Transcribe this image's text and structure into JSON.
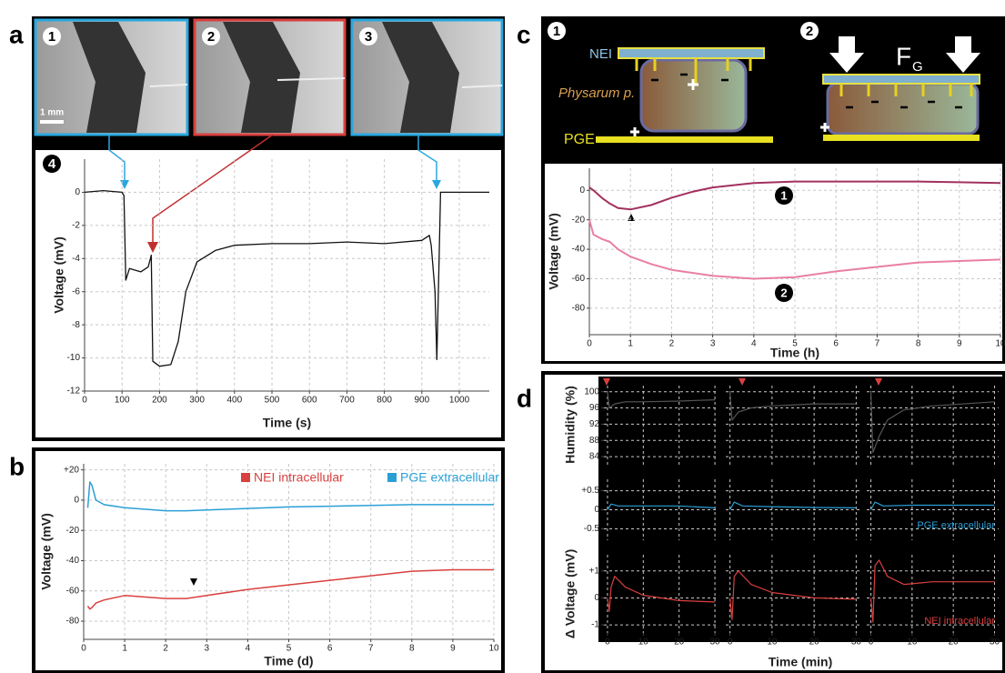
{
  "panel_labels": [
    "a",
    "b",
    "c",
    "d"
  ],
  "panel_a": {
    "images": [
      {
        "label": "1"
      },
      {
        "label": "2"
      },
      {
        "label": "3"
      }
    ],
    "scale_bar": "1 mm",
    "plot_label": "4"
  },
  "panel_c": {
    "diagram_1": "1",
    "diagram_2": "2",
    "nei": "NEI",
    "physarum": "Physarum p.",
    "pge": "PGE",
    "force": "F",
    "force_sub": "G"
  },
  "panel_d": {
    "xlabel": "Time (min)",
    "humidity_label": "Humidity (%)",
    "voltage_label": "Δ Voltage (mV)"
  },
  "chart_data": [
    {
      "type": "line",
      "xlabel": "Time (s)",
      "ylabel": "Voltage (mV)",
      "xlim": [
        0,
        1080
      ],
      "ylim": [
        -12,
        2
      ],
      "xticks": [
        0,
        100,
        200,
        300,
        400,
        500,
        600,
        700,
        800,
        900,
        1000
      ],
      "yticks": [
        0,
        -2,
        -4,
        -6,
        -8,
        -10,
        -12
      ],
      "grid": true,
      "x": [
        0,
        50,
        100,
        105,
        110,
        120,
        150,
        170,
        178,
        182,
        200,
        230,
        250,
        270,
        300,
        350,
        400,
        500,
        600,
        700,
        800,
        900,
        920,
        925,
        935,
        940,
        945,
        950,
        1000,
        1080
      ],
      "series": [
        {
          "color": "#111111",
          "values": [
            0,
            0.1,
            0,
            -0.2,
            -5.3,
            -4.6,
            -4.8,
            -4.5,
            -3.8,
            -10.2,
            -10.5,
            -10.4,
            -9,
            -6,
            -4.2,
            -3.5,
            -3.2,
            -3.1,
            -3.1,
            -3.0,
            -3.1,
            -2.9,
            -2.6,
            -3.2,
            -6,
            -10.1,
            -5,
            0,
            0,
            0
          ]
        }
      ]
    },
    {
      "type": "line",
      "xlabel": "Time (d)",
      "ylabel": "Voltage (mV)",
      "xlim": [
        0,
        10
      ],
      "ylim": [
        -92,
        24
      ],
      "xticks": [
        0,
        1,
        2,
        3,
        4,
        5,
        6,
        7,
        8,
        9,
        10
      ],
      "yticks": [
        {
          "value": 20,
          "label": "+20"
        },
        0,
        -20,
        -40,
        -60,
        -80
      ],
      "grid": true,
      "x": [
        0.1,
        0.15,
        0.2,
        0.3,
        0.5,
        1,
        2,
        2.5,
        3,
        4,
        5,
        6,
        7,
        8,
        9,
        10
      ],
      "series": [
        {
          "name": "NEI intracellular",
          "color": "#d9403f",
          "values": [
            -70,
            -72,
            -71,
            -68,
            -66,
            -63,
            -65,
            -65,
            -63,
            -59,
            -56,
            -53,
            -50,
            -47,
            -46,
            -46
          ]
        },
        {
          "name": "PGE extracellular",
          "color": "#2a9fd6",
          "values": [
            -5,
            12,
            10,
            0,
            -3,
            -5,
            -7,
            -7,
            -6.5,
            -5.5,
            -4.5,
            -4,
            -3.5,
            -3,
            -3,
            -3
          ]
        }
      ]
    },
    {
      "type": "line",
      "xlabel": "Time (h)",
      "ylabel": "Voltage (mV)",
      "xlim": [
        0,
        10
      ],
      "ylim": [
        -98,
        15
      ],
      "xticks": [
        0,
        1,
        2,
        3,
        4,
        5,
        6,
        7,
        8,
        9,
        10
      ],
      "yticks": [
        0,
        -20,
        -40,
        -60,
        -80
      ],
      "grid": true,
      "x": [
        0,
        0.1,
        0.3,
        0.5,
        0.7,
        1,
        1.5,
        2,
        2.5,
        3,
        4,
        5,
        6,
        7,
        8,
        9,
        10
      ],
      "series": [
        {
          "name": "1",
          "color": "#a3305f",
          "values": [
            2,
            0,
            -5,
            -9,
            -12,
            -13,
            -10,
            -5,
            -1,
            2,
            5,
            6,
            6,
            6,
            6,
            5.5,
            5
          ]
        },
        {
          "name": "2",
          "color": "#e97fa4",
          "values": [
            -20,
            -30,
            -33,
            -35,
            -40,
            -45,
            -50,
            -54,
            -56,
            -58,
            -60,
            -59,
            -55,
            -52,
            -49,
            -48,
            -47
          ]
        }
      ]
    },
    {
      "type": "line",
      "xlim": [
        -1,
        31
      ],
      "ylim": [
        82,
        101.5
      ],
      "xticks": [
        0,
        10,
        20,
        30
      ],
      "yticks": [
        100,
        96,
        92,
        88,
        84
      ],
      "grid": true,
      "x": [
        0,
        0.5,
        2,
        5,
        10,
        20,
        30
      ],
      "series": [
        {
          "color": "#555555",
          "values": [
            100,
            96,
            97,
            97.5,
            97.5,
            97.7,
            98
          ]
        }
      ]
    },
    {
      "type": "line",
      "xlim": [
        -1,
        31
      ],
      "ylim": [
        82,
        101.5
      ],
      "xticks": [
        0,
        10,
        20,
        30
      ],
      "yticks": [
        100,
        96,
        92,
        88,
        84
      ],
      "grid": true,
      "x": [
        0,
        0.5,
        2,
        5,
        10,
        20,
        30
      ],
      "series": [
        {
          "color": "#555555",
          "values": [
            100,
            93,
            95,
            96,
            96.5,
            97,
            97
          ]
        }
      ]
    },
    {
      "type": "line",
      "xlim": [
        -1,
        31
      ],
      "ylim": [
        82,
        101.5
      ],
      "xticks": [
        0,
        10,
        20,
        30
      ],
      "yticks": [
        100,
        96,
        92,
        88,
        84
      ],
      "grid": true,
      "x": [
        0,
        0.5,
        2,
        4,
        8,
        15,
        30
      ],
      "series": [
        {
          "color": "#555555",
          "values": [
            100,
            85,
            89,
            93,
            95.5,
            96.5,
            97.5
          ]
        }
      ]
    },
    {
      "type": "line",
      "xlim": [
        -1,
        31
      ],
      "ylim": [
        -0.8,
        0.8
      ],
      "xticks": [
        0,
        10,
        20,
        30
      ],
      "yticks": [
        {
          "value": 0.5,
          "label": "+0.5"
        },
        0,
        {
          "value": -0.5,
          "label": "-0.5"
        }
      ],
      "grid": true,
      "x": [
        0,
        1,
        3,
        10,
        20,
        30
      ],
      "series": [
        {
          "color": "#2a9fd6",
          "values": [
            0,
            0.15,
            0.1,
            0.1,
            0.1,
            0.05
          ]
        }
      ]
    },
    {
      "type": "line",
      "xlim": [
        -1,
        31
      ],
      "ylim": [
        -0.8,
        0.8
      ],
      "xticks": [
        0,
        10,
        20,
        30
      ],
      "yticks": [
        {
          "value": 0.5,
          "label": "+0.5"
        },
        0,
        {
          "value": -0.5,
          "label": "-0.5"
        }
      ],
      "grid": true,
      "x": [
        0,
        1,
        3,
        10,
        20,
        30
      ],
      "series": [
        {
          "color": "#2a9fd6",
          "values": [
            0,
            0.2,
            0.1,
            0.08,
            0.06,
            0.05
          ]
        }
      ]
    },
    {
      "type": "line",
      "xlim": [
        -1,
        31
      ],
      "ylim": [
        -0.8,
        0.8
      ],
      "xticks": [
        0,
        10,
        20,
        30
      ],
      "yticks": [
        {
          "value": 0.5,
          "label": "+0.5"
        },
        0,
        {
          "value": -0.5,
          "label": "-0.5"
        }
      ],
      "grid": true,
      "x": [
        0,
        1,
        3,
        10,
        20,
        30
      ],
      "series": [
        {
          "name": "PGE extracellular",
          "color": "#2a9fd6",
          "values": [
            0,
            0.2,
            0.1,
            0.12,
            0.12,
            0.12
          ]
        }
      ]
    },
    {
      "type": "line",
      "xlim": [
        -1,
        31
      ],
      "ylim": [
        -1.3,
        1.6
      ],
      "xticks": [
        0,
        10,
        20,
        30
      ],
      "yticks": [
        {
          "value": 1,
          "label": "+1"
        },
        0,
        -1
      ],
      "grid": true,
      "x": [
        0,
        0.5,
        1,
        2,
        5,
        10,
        20,
        30
      ],
      "series": [
        {
          "color": "#d9403f",
          "values": [
            0,
            -0.5,
            0.4,
            0.8,
            0.4,
            0.1,
            -0.1,
            -0.15
          ]
        }
      ]
    },
    {
      "type": "line",
      "xlim": [
        -1,
        31
      ],
      "ylim": [
        -1.3,
        1.6
      ],
      "xticks": [
        0,
        10,
        20,
        30
      ],
      "yticks": [
        {
          "value": 1,
          "label": "+1"
        },
        0,
        -1
      ],
      "grid": true,
      "x": [
        0,
        0.5,
        1,
        2,
        5,
        10,
        20,
        30
      ],
      "series": [
        {
          "color": "#d9403f",
          "values": [
            0,
            -0.8,
            0.8,
            1.0,
            0.5,
            0.2,
            0,
            -0.05
          ]
        }
      ]
    },
    {
      "type": "line",
      "xlim": [
        -1,
        31
      ],
      "ylim": [
        -1.3,
        1.6
      ],
      "xticks": [
        0,
        10,
        20,
        30
      ],
      "yticks": [
        {
          "value": 1,
          "label": "+1"
        },
        0,
        -1
      ],
      "grid": true,
      "x": [
        0,
        0.5,
        1,
        2,
        4,
        8,
        15,
        30
      ],
      "series": [
        {
          "name": "NEI intracellular",
          "color": "#d9403f",
          "values": [
            0,
            -0.9,
            1.2,
            1.4,
            0.8,
            0.5,
            0.6,
            0.6
          ]
        }
      ]
    }
  ]
}
